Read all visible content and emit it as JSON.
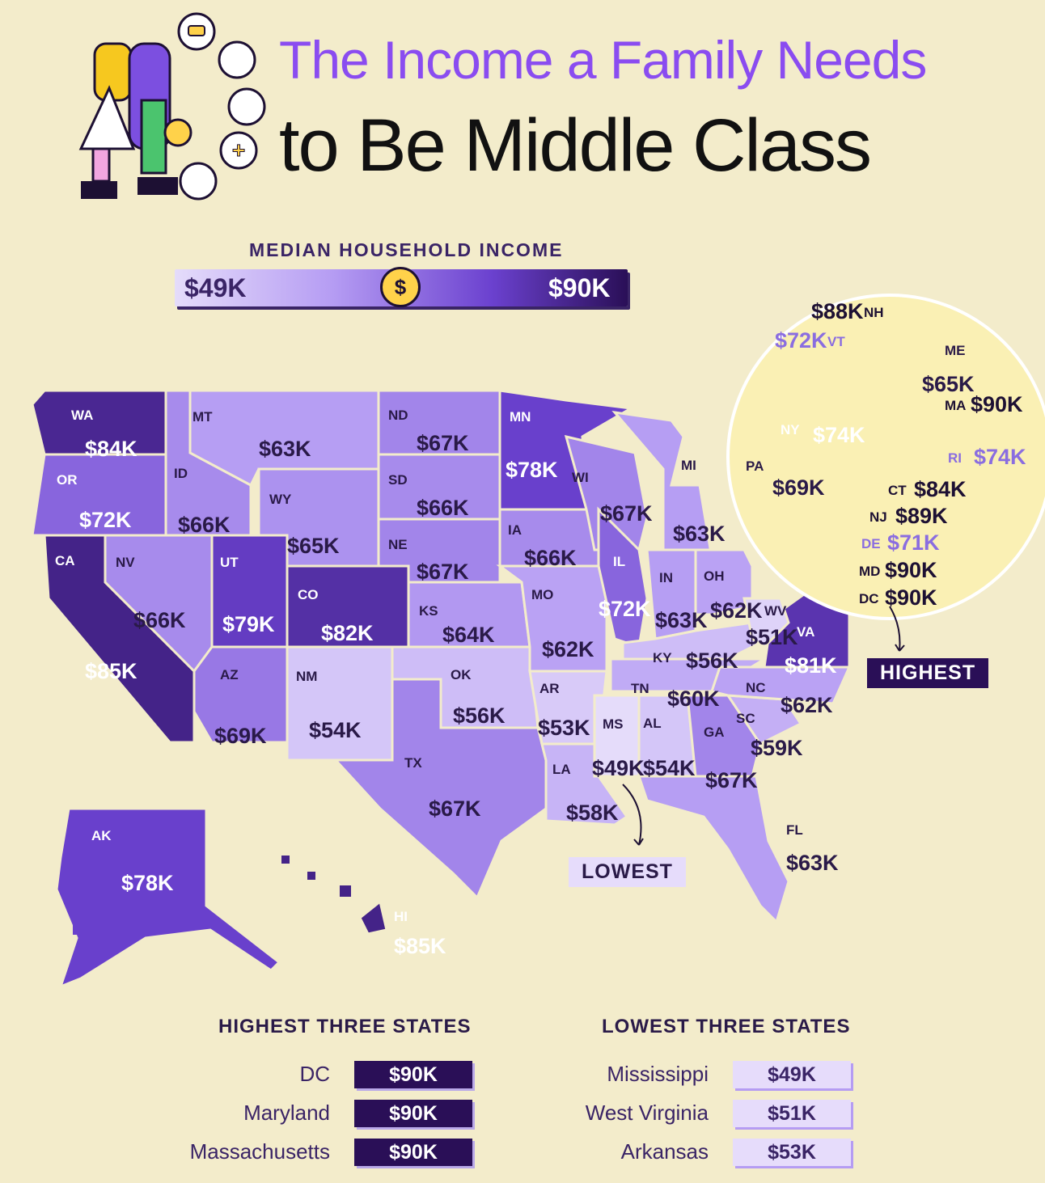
{
  "title": {
    "line1": "The Income a Family Needs",
    "line2": "to Be Middle Class"
  },
  "legend": {
    "title": "MEDIAN HOUSEHOLD INCOME",
    "min": "$49K",
    "max": "$90K"
  },
  "states": [
    {
      "abbr": "WA",
      "value": "$84K"
    },
    {
      "abbr": "OR",
      "value": "$72K"
    },
    {
      "abbr": "CA",
      "value": "$85K"
    },
    {
      "abbr": "NV",
      "value": "$66K"
    },
    {
      "abbr": "ID",
      "value": "$66K"
    },
    {
      "abbr": "MT",
      "value": "$63K"
    },
    {
      "abbr": "WY",
      "value": "$65K"
    },
    {
      "abbr": "UT",
      "value": "$79K"
    },
    {
      "abbr": "AZ",
      "value": "$69K"
    },
    {
      "abbr": "CO",
      "value": "$82K"
    },
    {
      "abbr": "NM",
      "value": "$54K"
    },
    {
      "abbr": "ND",
      "value": "$67K"
    },
    {
      "abbr": "SD",
      "value": "$66K"
    },
    {
      "abbr": "NE",
      "value": "$67K"
    },
    {
      "abbr": "KS",
      "value": "$64K"
    },
    {
      "abbr": "OK",
      "value": "$56K"
    },
    {
      "abbr": "TX",
      "value": "$67K"
    },
    {
      "abbr": "MN",
      "value": "$78K"
    },
    {
      "abbr": "IA",
      "value": "$66K"
    },
    {
      "abbr": "MO",
      "value": "$62K"
    },
    {
      "abbr": "AR",
      "value": "$53K"
    },
    {
      "abbr": "LA",
      "value": "$58K"
    },
    {
      "abbr": "WI",
      "value": "$67K"
    },
    {
      "abbr": "IL",
      "value": "$72K"
    },
    {
      "abbr": "MI",
      "value": "$63K"
    },
    {
      "abbr": "IN",
      "value": "$63K"
    },
    {
      "abbr": "OH",
      "value": "$62K"
    },
    {
      "abbr": "KY",
      "value": "$56K"
    },
    {
      "abbr": "TN",
      "value": "$60K"
    },
    {
      "abbr": "MS",
      "value": "$49K"
    },
    {
      "abbr": "AL",
      "value": "$54K"
    },
    {
      "abbr": "GA",
      "value": "$67K"
    },
    {
      "abbr": "FL",
      "value": "$63K"
    },
    {
      "abbr": "SC",
      "value": "$59K"
    },
    {
      "abbr": "NC",
      "value": "$62K"
    },
    {
      "abbr": "VA",
      "value": "$81K"
    },
    {
      "abbr": "WV",
      "value": "$51K"
    },
    {
      "abbr": "PA",
      "value": "$69K"
    },
    {
      "abbr": "NY",
      "value": "$74K"
    },
    {
      "abbr": "ME",
      "value": "$65K"
    },
    {
      "abbr": "NH",
      "value": "$88K"
    },
    {
      "abbr": "VT",
      "value": "$72K"
    },
    {
      "abbr": "MA",
      "value": "$90K"
    },
    {
      "abbr": "RI",
      "value": "$74K"
    },
    {
      "abbr": "CT",
      "value": "$84K"
    },
    {
      "abbr": "NJ",
      "value": "$89K"
    },
    {
      "abbr": "DE",
      "value": "$71K"
    },
    {
      "abbr": "MD",
      "value": "$90K"
    },
    {
      "abbr": "DC",
      "value": "$90K"
    },
    {
      "abbr": "AK",
      "value": "$78K"
    },
    {
      "abbr": "HI",
      "value": "$85K"
    }
  ],
  "callouts": {
    "highest": "HIGHEST",
    "lowest": "LOWEST"
  },
  "highest_three": {
    "title": "HIGHEST THREE STATES",
    "rows": [
      {
        "name": "DC",
        "value": "$90K"
      },
      {
        "name": "Maryland",
        "value": "$90K"
      },
      {
        "name": "Massachusetts",
        "value": "$90K"
      }
    ]
  },
  "lowest_three": {
    "title": "LOWEST THREE STATES",
    "rows": [
      {
        "name": "Mississippi",
        "value": "$49K"
      },
      {
        "name": "West Virginia",
        "value": "$51K"
      },
      {
        "name": "Arkansas",
        "value": "$53K"
      }
    ]
  },
  "colors": {
    "bg": "#f3eccb",
    "title_accent": "#8a4cf0",
    "low": "#e5dcfa",
    "high": "#2a0f57"
  }
}
